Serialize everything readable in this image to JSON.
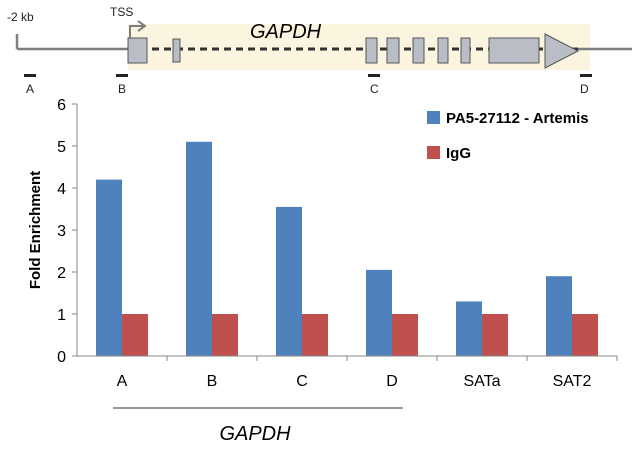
{
  "gene_map": {
    "scale_label": "-2 kb",
    "tss_label": "TSS",
    "gene_name": "GAPDH",
    "region_labels": [
      "A",
      "B",
      "C",
      "D"
    ]
  },
  "colors": {
    "series_1": "#4F81BD",
    "series_2": "#C0504D",
    "exon_fill": "#B8BDC6",
    "gene_band": "#FBF5E0"
  },
  "chart_data": {
    "type": "bar",
    "categories": [
      "A",
      "B",
      "C",
      "D",
      "SATa",
      "SAT2"
    ],
    "series": [
      {
        "name": "PA5-27112 - Artemis",
        "values": [
          4.2,
          5.1,
          3.55,
          2.05,
          1.3,
          1.9
        ]
      },
      {
        "name": "IgG",
        "values": [
          1,
          1,
          1,
          1,
          1,
          1
        ]
      }
    ],
    "title": "",
    "xlabel": "",
    "ylabel": "Fold Enrichment",
    "ylim": [
      0,
      6
    ],
    "yticks": [
      0,
      1,
      2,
      3,
      4,
      5,
      6
    ],
    "grid": false,
    "legend_position": "top-right",
    "group_label": {
      "text": "GAPDH",
      "categories": [
        "A",
        "B",
        "C",
        "D"
      ]
    }
  }
}
